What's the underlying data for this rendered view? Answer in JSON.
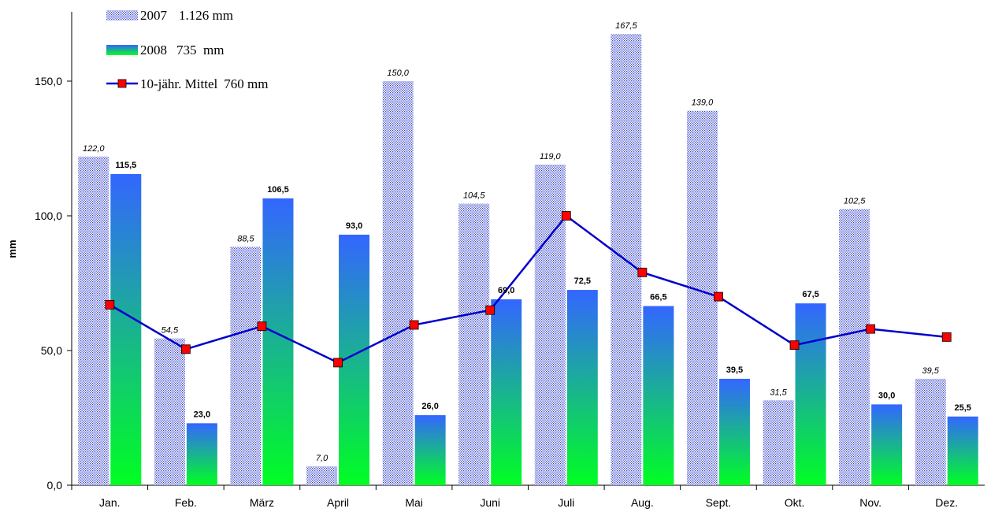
{
  "chart_data": {
    "type": "bar",
    "categories": [
      "Jan.",
      "Feb.",
      "März",
      "April",
      "Mai",
      "Juni",
      "Juli",
      "Aug.",
      "Sept.",
      "Okt.",
      "Nov.",
      "Dez."
    ],
    "series": [
      {
        "name": "2007",
        "total": "1.126 mm",
        "kind": "bar",
        "values": [
          122.0,
          54.5,
          88.5,
          7.0,
          150.0,
          104.5,
          119.0,
          167.5,
          139.0,
          31.5,
          102.5,
          39.5
        ],
        "labels": [
          "122,0",
          "54,5",
          "88,5",
          "7,0",
          "150,0",
          "104,5",
          "119,0",
          "167,5",
          "139,0",
          "31,5",
          "102,5",
          "39,5"
        ],
        "color": "#3340cc"
      },
      {
        "name": "2008",
        "total": "735  mm",
        "kind": "bar",
        "values": [
          115.5,
          23.0,
          106.5,
          93.0,
          26.0,
          69.0,
          72.5,
          66.5,
          39.5,
          67.5,
          30.0,
          25.5
        ],
        "labels": [
          "115,5",
          "23,0",
          "106,5",
          "93,0",
          "26,0",
          "69,0",
          "72,5",
          "66,5",
          "39,5",
          "67,5",
          "30,0",
          "25,5"
        ],
        "color_top": "#3366ff",
        "color_bottom": "#00ff22"
      },
      {
        "name": "10-jähr. Mittel",
        "total": "760 mm",
        "kind": "line",
        "values": [
          67,
          50.5,
          59,
          45.5,
          59.5,
          65,
          100,
          79,
          70,
          52,
          58,
          55
        ],
        "color": "#0000cc",
        "marker_color": "#ff0000"
      }
    ],
    "ylabel": "mm",
    "ylim": [
      0,
      175
    ],
    "yticks": [
      0,
      50,
      100,
      150
    ],
    "ytick_labels": [
      "0,0",
      "50,0",
      "100,0",
      "150,0"
    ],
    "grid": false,
    "legend_position": "top-left"
  }
}
